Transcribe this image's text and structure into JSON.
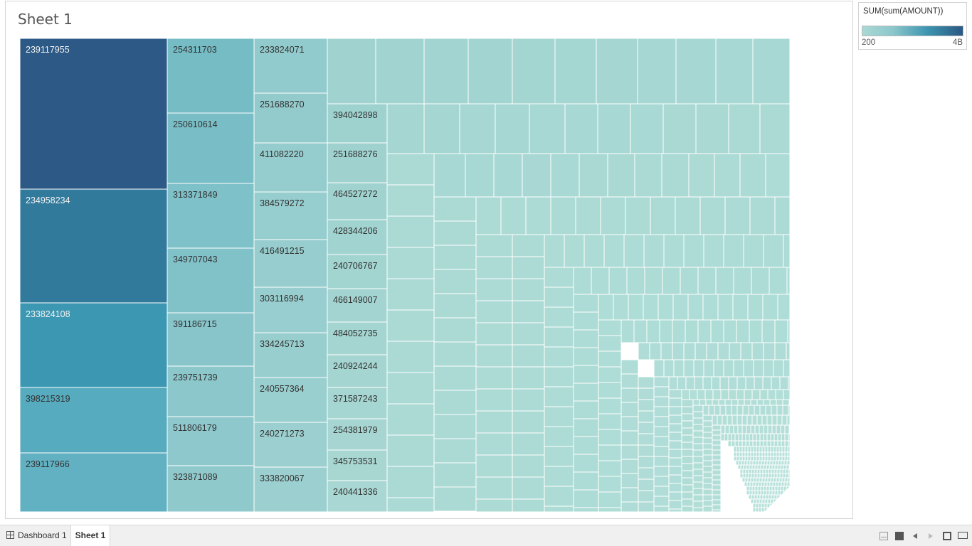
{
  "sheet": {
    "title": "Sheet 1"
  },
  "legend": {
    "title": "SUM(sum(AMOUNT))",
    "min_label": "200",
    "max_label": "4B"
  },
  "tabs": [
    {
      "label": "Dashboard 1"
    },
    {
      "label": "Sheet 1"
    }
  ],
  "chart_data": {
    "type": "treemap",
    "measure": "SUM(sum(AMOUNT))",
    "color_range": [
      "200",
      "4B"
    ],
    "colors": [
      "#a9d9d5",
      "#2b5883"
    ],
    "columns": [
      {
        "rows": [
          {
            "label": "239117955",
            "color": "#2c5985"
          },
          {
            "label": "234958234",
            "color": "#317a9c"
          },
          {
            "label": "233824108",
            "color": "#3c97b3"
          },
          {
            "label": "398215319",
            "color": "#57abbe"
          },
          {
            "label": "239117966",
            "color": "#62b1c2"
          }
        ]
      },
      {
        "rows": [
          {
            "label": "254311703",
            "color": "#75bcc5"
          },
          {
            "label": "250610614",
            "color": "#79bec6"
          },
          {
            "label": "313371849",
            "color": "#7ec1c8"
          },
          {
            "label": "349707043",
            "color": "#81c2c9"
          },
          {
            "label": "391186715",
            "color": "#87c5cb"
          },
          {
            "label": "239751739",
            "color": "#8cc7cb"
          },
          {
            "label": "511806179",
            "color": "#8ec8cc"
          },
          {
            "label": "323871089",
            "color": "#90c9cc"
          }
        ]
      },
      {
        "rows": [
          {
            "label": "233824071",
            "color": "#92cbcd"
          },
          {
            "label": "251688270",
            "color": "#93cbcd"
          },
          {
            "label": "411082220",
            "color": "#95ccce"
          },
          {
            "label": "384579272",
            "color": "#96cdce"
          },
          {
            "label": "416491215",
            "color": "#97cdce"
          },
          {
            "label": "303116994",
            "color": "#98cecf"
          },
          {
            "label": "334245713",
            "color": "#99cecf"
          },
          {
            "label": "240557364",
            "color": "#9acfd0"
          },
          {
            "label": "240271273",
            "color": "#9bcfd0"
          },
          {
            "label": "333820067",
            "color": "#9cd0d0"
          }
        ]
      },
      {
        "rows": [
          {
            "label": "394042898",
            "color": "#9ed2cf"
          },
          {
            "label": "251688276",
            "color": "#9fd2cf"
          },
          {
            "label": "464527272",
            "color": "#a0d3d0"
          },
          {
            "label": "428344206",
            "color": "#a1d3d0"
          },
          {
            "label": "240706767",
            "color": "#a2d4d0"
          },
          {
            "label": "466149007",
            "color": "#a3d4d1"
          },
          {
            "label": "484052735",
            "color": "#a4d5d1"
          },
          {
            "label": "240924244",
            "color": "#a5d5d1"
          },
          {
            "label": "371587243",
            "color": "#a6d6d2"
          },
          {
            "label": "254381979",
            "color": "#a7d6d2"
          },
          {
            "label": "345753531",
            "color": "#a8d7d2"
          },
          {
            "label": "240441336",
            "color": "#a9d7d3"
          }
        ]
      }
    ]
  }
}
